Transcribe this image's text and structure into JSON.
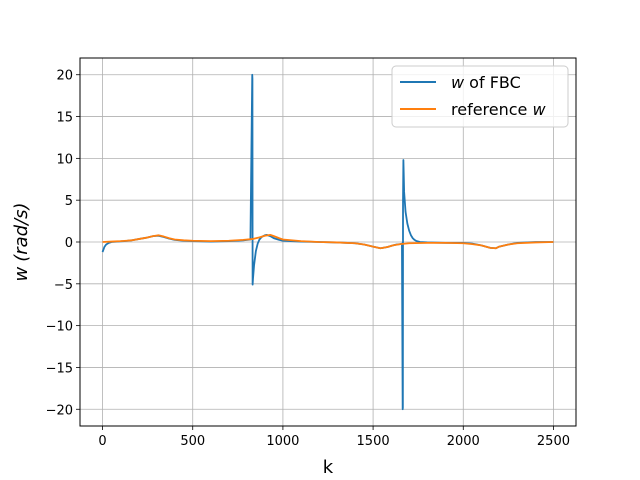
{
  "chart_data": {
    "type": "line",
    "title": "",
    "xlabel": "k",
    "ylabel_var": "w",
    "ylabel_unit": "(rad/s)",
    "xlim": [
      -125,
      2625
    ],
    "ylim": [
      -22,
      22
    ],
    "grid": true,
    "legend_placement": "top-right",
    "x_ticks": [
      0,
      500,
      1000,
      1500,
      2000,
      2500
    ],
    "x_tick_labels": [
      "0",
      "500",
      "1000",
      "1500",
      "2000",
      "2500"
    ],
    "y_ticks": [
      20,
      15,
      10,
      5,
      0,
      -5,
      -10,
      -15,
      -20
    ],
    "y_tick_labels": [
      "20",
      "15",
      "10",
      "5",
      "0",
      "−5",
      "−10",
      "−15",
      "−20"
    ],
    "series": [
      {
        "name_var": "w",
        "name_text": " of FBC",
        "color": "#1f77b4",
        "x": [
          0,
          5,
          10,
          20,
          35,
          50,
          80,
          120,
          160,
          200,
          240,
          280,
          310,
          340,
          370,
          400,
          450,
          500,
          600,
          700,
          780,
          820,
          830,
          831,
          832,
          834,
          840,
          850,
          860,
          870,
          880,
          890,
          900,
          910,
          930,
          950,
          980,
          1000,
          1100,
          1200,
          1300,
          1400,
          1450,
          1500,
          1540,
          1580,
          1610,
          1630,
          1650,
          1660,
          1664,
          1665,
          1666,
          1668,
          1670,
          1672,
          1680,
          1690,
          1700,
          1710,
          1720,
          1730,
          1740,
          1760,
          1800,
          1900,
          2000,
          2050,
          2100,
          2150,
          2180,
          2200,
          2250,
          2300,
          2400,
          2500
        ],
        "y": [
          -1.2,
          -0.9,
          -0.6,
          -0.3,
          -0.1,
          0.0,
          0.05,
          0.1,
          0.2,
          0.35,
          0.5,
          0.7,
          0.75,
          0.6,
          0.4,
          0.25,
          0.15,
          0.1,
          0.05,
          0.1,
          0.2,
          0.3,
          20.0,
          19.5,
          -5.1,
          -4.4,
          -2.8,
          -1.1,
          -0.2,
          0.3,
          0.55,
          0.7,
          0.8,
          0.85,
          0.7,
          0.45,
          0.25,
          0.15,
          0.05,
          0.0,
          -0.05,
          -0.15,
          -0.3,
          -0.55,
          -0.75,
          -0.6,
          -0.4,
          -0.3,
          -0.25,
          -0.2,
          -20.0,
          -19.8,
          5.0,
          9.8,
          8.0,
          6.0,
          3.6,
          2.2,
          1.35,
          0.8,
          0.45,
          0.25,
          0.12,
          0.0,
          -0.05,
          -0.1,
          -0.1,
          -0.2,
          -0.4,
          -0.7,
          -0.75,
          -0.55,
          -0.3,
          -0.1,
          0.0,
          0.0
        ]
      },
      {
        "name_text": "reference ",
        "name_var": "w",
        "color": "#ff7f0e",
        "x": [
          0,
          50,
          100,
          160,
          200,
          240,
          280,
          310,
          340,
          370,
          400,
          450,
          500,
          600,
          700,
          780,
          830,
          870,
          900,
          930,
          950,
          980,
          1000,
          1100,
          1200,
          1300,
          1400,
          1450,
          1500,
          1540,
          1580,
          1610,
          1650,
          1700,
          1800,
          1900,
          2000,
          2050,
          2100,
          2150,
          2180,
          2200,
          2250,
          2300,
          2400,
          2500
        ],
        "y": [
          0.0,
          0.05,
          0.1,
          0.2,
          0.35,
          0.5,
          0.7,
          0.8,
          0.65,
          0.45,
          0.3,
          0.2,
          0.15,
          0.1,
          0.15,
          0.25,
          0.35,
          0.55,
          0.75,
          0.85,
          0.7,
          0.45,
          0.3,
          0.1,
          0.0,
          -0.05,
          -0.15,
          -0.3,
          -0.55,
          -0.75,
          -0.6,
          -0.4,
          -0.25,
          -0.15,
          -0.1,
          -0.1,
          -0.15,
          -0.25,
          -0.4,
          -0.7,
          -0.75,
          -0.55,
          -0.3,
          -0.15,
          -0.05,
          0.0
        ]
      }
    ]
  }
}
